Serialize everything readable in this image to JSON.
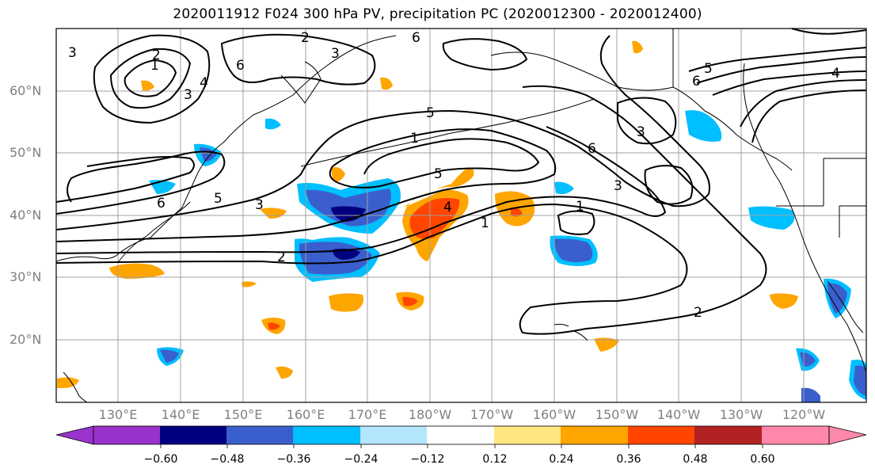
{
  "title": "2020011912 F024 300 hPa PV, precipitation PC (2020012300 - 2020012400)",
  "map": {
    "lat_labels": [
      "60°N",
      "50°N",
      "40°N",
      "30°N",
      "20°N"
    ],
    "lon_labels": [
      "130°E",
      "140°E",
      "150°E",
      "160°E",
      "170°E",
      "180°W",
      "170°W",
      "160°W",
      "150°W",
      "140°W",
      "130°W",
      "120°W"
    ],
    "contour_labels": [
      "1",
      "2",
      "3",
      "4",
      "5",
      "6"
    ]
  },
  "colorbar": {
    "tick_labels": [
      "−0.60",
      "−0.48",
      "−0.36",
      "−0.24",
      "−0.12",
      "0.12",
      "0.24",
      "0.36",
      "0.48",
      "0.60"
    ],
    "colors": [
      "#9933cc",
      "#000080",
      "#3a5fcd",
      "#00bfff",
      "#b3e5fc",
      "#ffffff",
      "#ffe680",
      "#ffa500",
      "#ff4500",
      "#b22222",
      "#ff88aa"
    ]
  }
}
